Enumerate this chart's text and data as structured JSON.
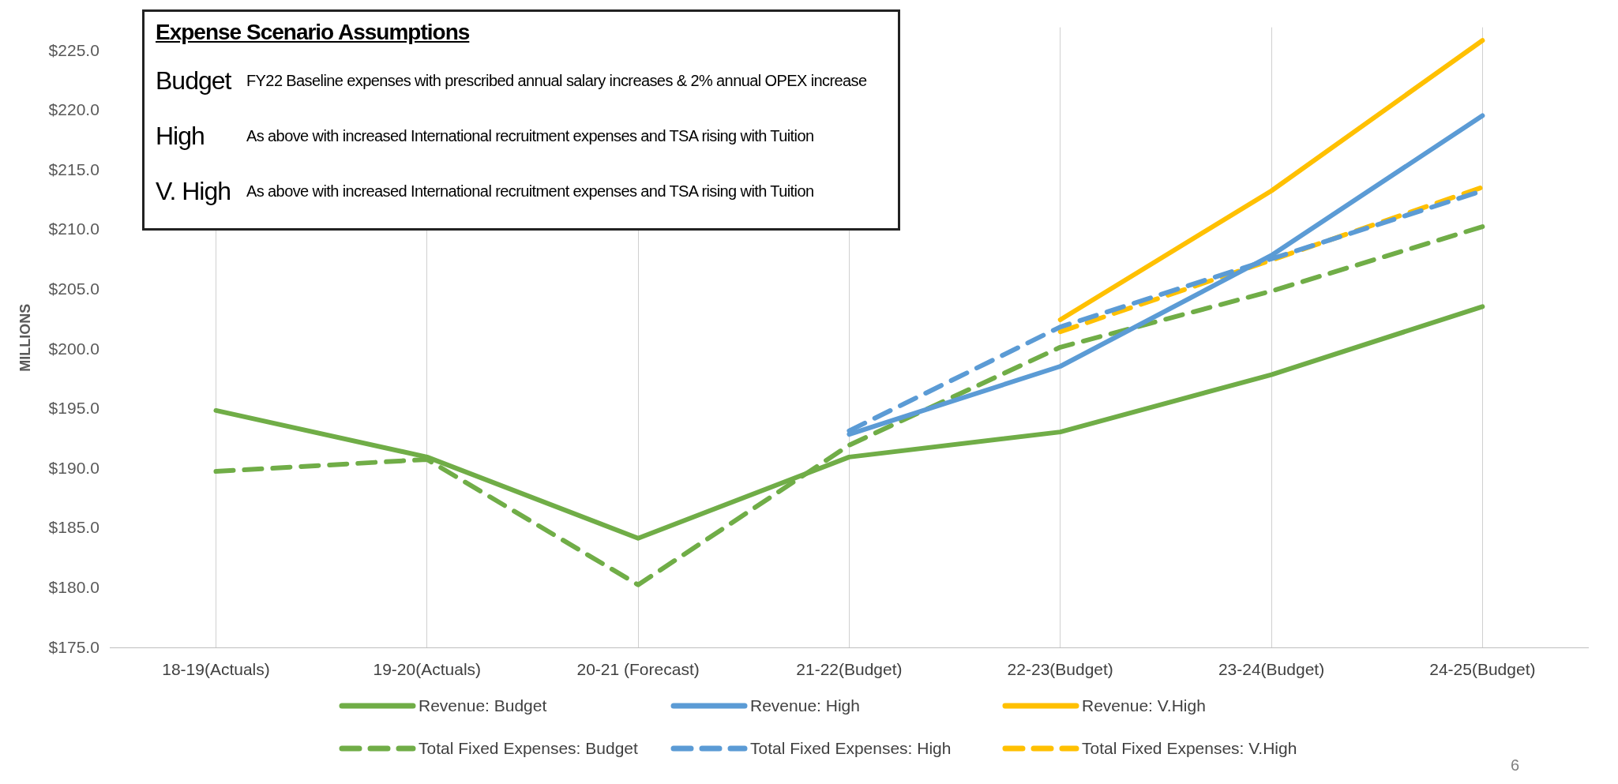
{
  "chart_data": {
    "type": "line",
    "ylabel": "MILLIONS",
    "categories": [
      "18-19(Actuals)",
      "19-20(Actuals)",
      "20-21 (Forecast)",
      "21-22(Budget)",
      "22-23(Budget)",
      "23-24(Budget)",
      "24-25(Budget)"
    ],
    "series": [
      {
        "name": "Revenue: Budget",
        "color": "#70ad47",
        "line_style": "solid",
        "values": [
          194.9,
          191.0,
          184.2,
          191.0,
          193.1,
          197.9,
          203.6
        ]
      },
      {
        "name": "Revenue: High",
        "color": "#5b9bd5",
        "line_style": "solid",
        "values": [
          null,
          null,
          null,
          192.9,
          198.6,
          207.9,
          219.6
        ]
      },
      {
        "name": "Revenue: V.High",
        "color": "#ffc000",
        "line_style": "solid",
        "values": [
          null,
          null,
          null,
          null,
          202.5,
          213.3,
          225.9
        ]
      },
      {
        "name": "Total Fixed Expenses: Budget",
        "color": "#70ad47",
        "line_style": "dashed",
        "values": [
          189.8,
          190.8,
          180.3,
          192.0,
          200.2,
          204.9,
          210.3
        ]
      },
      {
        "name": "Total Fixed Expenses: High",
        "color": "#5b9bd5",
        "line_style": "dashed",
        "values": [
          null,
          null,
          null,
          193.2,
          201.9,
          207.6,
          213.3
        ]
      },
      {
        "name": "Total Fixed Expenses: V.High",
        "color": "#ffc000",
        "line_style": "dashed",
        "values": [
          null,
          null,
          null,
          null,
          201.5,
          207.5,
          213.6
        ]
      }
    ],
    "ylim": [
      175,
      227
    ],
    "yticks": [
      {
        "value": 175,
        "label": "$175.0"
      },
      {
        "value": 180,
        "label": "$180.0"
      },
      {
        "value": 185,
        "label": "$185.0"
      },
      {
        "value": 190,
        "label": "$190.0"
      },
      {
        "value": 195,
        "label": "$195.0"
      },
      {
        "value": 200,
        "label": "$200.0"
      },
      {
        "value": 205,
        "label": "$205.0"
      },
      {
        "value": 210,
        "label": "$210.0"
      },
      {
        "value": 215,
        "label": "$215.0"
      },
      {
        "value": 220,
        "label": "$220.0"
      },
      {
        "value": 225,
        "label": "$225.0"
      }
    ],
    "grid": "x",
    "legend": "bottom",
    "marker": "none",
    "annotations": [
      "Expense Scenario Assumptions",
      "Budget",
      "FY22 Baseline expenses with prescribed annual salary increases & 2% annual OPEX increase",
      "High",
      "As above with increased International recruitment expenses and TSA rising with Tuition",
      "V. High",
      "As above with increased International recruitment expenses and TSA rising with Tuition",
      "6"
    ]
  }
}
